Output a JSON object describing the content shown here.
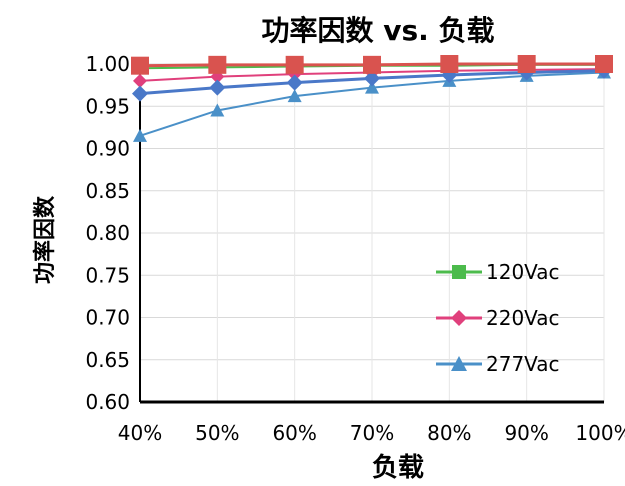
{
  "chart_data": {
    "type": "line",
    "title": "功率因数 vs. 负载",
    "xlabel": "负载",
    "ylabel": "功率因数",
    "x": [
      "40%",
      "50%",
      "60%",
      "70%",
      "80%",
      "90%",
      "100%"
    ],
    "ylim": [
      0.6,
      1.0
    ],
    "yticks": [
      "0.60",
      "0.65",
      "0.70",
      "0.75",
      "0.80",
      "0.85",
      "0.90",
      "0.95",
      "1.00"
    ],
    "grid": true,
    "legend_position": "bottom-right",
    "series": [
      {
        "name": "120Vac",
        "color": "#4cbb4c",
        "marker": "square",
        "values": [
          0.995,
          0.996,
          0.997,
          0.998,
          0.998,
          0.999,
          0.999
        ]
      },
      {
        "name": "220Vac",
        "color": "#e0407c",
        "marker": "diamond",
        "values": [
          0.98,
          0.985,
          0.988,
          0.99,
          0.992,
          0.993,
          0.994
        ]
      },
      {
        "name": "277Vac",
        "color": "#4a90c8",
        "marker": "triangle",
        "values": [
          0.915,
          0.945,
          0.962,
          0.972,
          0.98,
          0.986,
          0.99
        ]
      }
    ],
    "highlight": {
      "color": "#d9534f",
      "marker": "square",
      "values": [
        0.998,
        0.999,
        0.999,
        0.999,
        1.0,
        1.0,
        1.0
      ]
    },
    "overlay": {
      "color": "#4a78c8",
      "marker": "diamond",
      "values": [
        0.965,
        0.972,
        0.978,
        0.983,
        0.987,
        0.99,
        0.992
      ]
    }
  }
}
